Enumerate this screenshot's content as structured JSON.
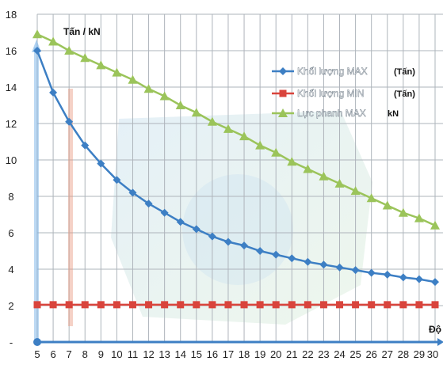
{
  "chart_data": {
    "type": "line",
    "ylabel": "Tấn / kN",
    "xlabel": "Độ",
    "x": [
      5,
      6,
      7,
      8,
      9,
      10,
      11,
      12,
      13,
      14,
      15,
      16,
      17,
      18,
      19,
      20,
      21,
      22,
      23,
      24,
      25,
      26,
      27,
      28,
      29,
      30
    ],
    "x_tick_labels": [
      "5",
      "6",
      "7",
      "8",
      "9",
      "10",
      "11",
      "12",
      "13",
      "14",
      "15",
      "16",
      "17",
      "18",
      "19",
      "20",
      "21",
      "22",
      "23",
      "24",
      "25",
      "26",
      "27",
      "28",
      "29",
      "30"
    ],
    "y_tick_labels": [
      "-",
      "2",
      "4",
      "6",
      "8",
      "10",
      "12",
      "14",
      "16",
      "18"
    ],
    "ylim": [
      0,
      18
    ],
    "xlim": [
      5,
      30
    ],
    "grid": true,
    "legend_position": "top-right",
    "series": [
      {
        "name": "Khối lượng MAX",
        "unit": "(Tấn)",
        "color": "#3d7fc4",
        "marker": "diamond",
        "values": [
          16.0,
          13.7,
          12.1,
          10.8,
          9.8,
          8.9,
          8.2,
          7.6,
          7.1,
          6.6,
          6.2,
          5.8,
          5.5,
          5.3,
          5.0,
          4.8,
          4.6,
          4.4,
          4.25,
          4.1,
          3.95,
          3.8,
          3.7,
          3.55,
          3.45,
          3.3
        ]
      },
      {
        "name": "Khối lượng MIN",
        "unit": "(Tấn)",
        "color": "#d9443c",
        "marker": "square",
        "values": [
          2.05,
          2.05,
          2.05,
          2.05,
          2.05,
          2.05,
          2.05,
          2.05,
          2.05,
          2.05,
          2.05,
          2.05,
          2.05,
          2.05,
          2.05,
          2.05,
          2.05,
          2.05,
          2.05,
          2.05,
          2.05,
          2.05,
          2.05,
          2.05,
          2.05,
          2.05
        ]
      },
      {
        "name": "Lực phanh MAX",
        "unit": "kN",
        "color": "#9bc45a",
        "marker": "triangle",
        "values": [
          16.9,
          16.5,
          16.0,
          15.6,
          15.2,
          14.8,
          14.4,
          13.9,
          13.5,
          13.0,
          12.6,
          12.1,
          11.7,
          11.3,
          10.8,
          10.4,
          9.9,
          9.5,
          9.1,
          8.7,
          8.3,
          7.9,
          7.5,
          7.1,
          6.8,
          6.4
        ]
      }
    ],
    "baseline_series": {
      "color": "#3d7fc4",
      "values_at_zero": true
    }
  }
}
